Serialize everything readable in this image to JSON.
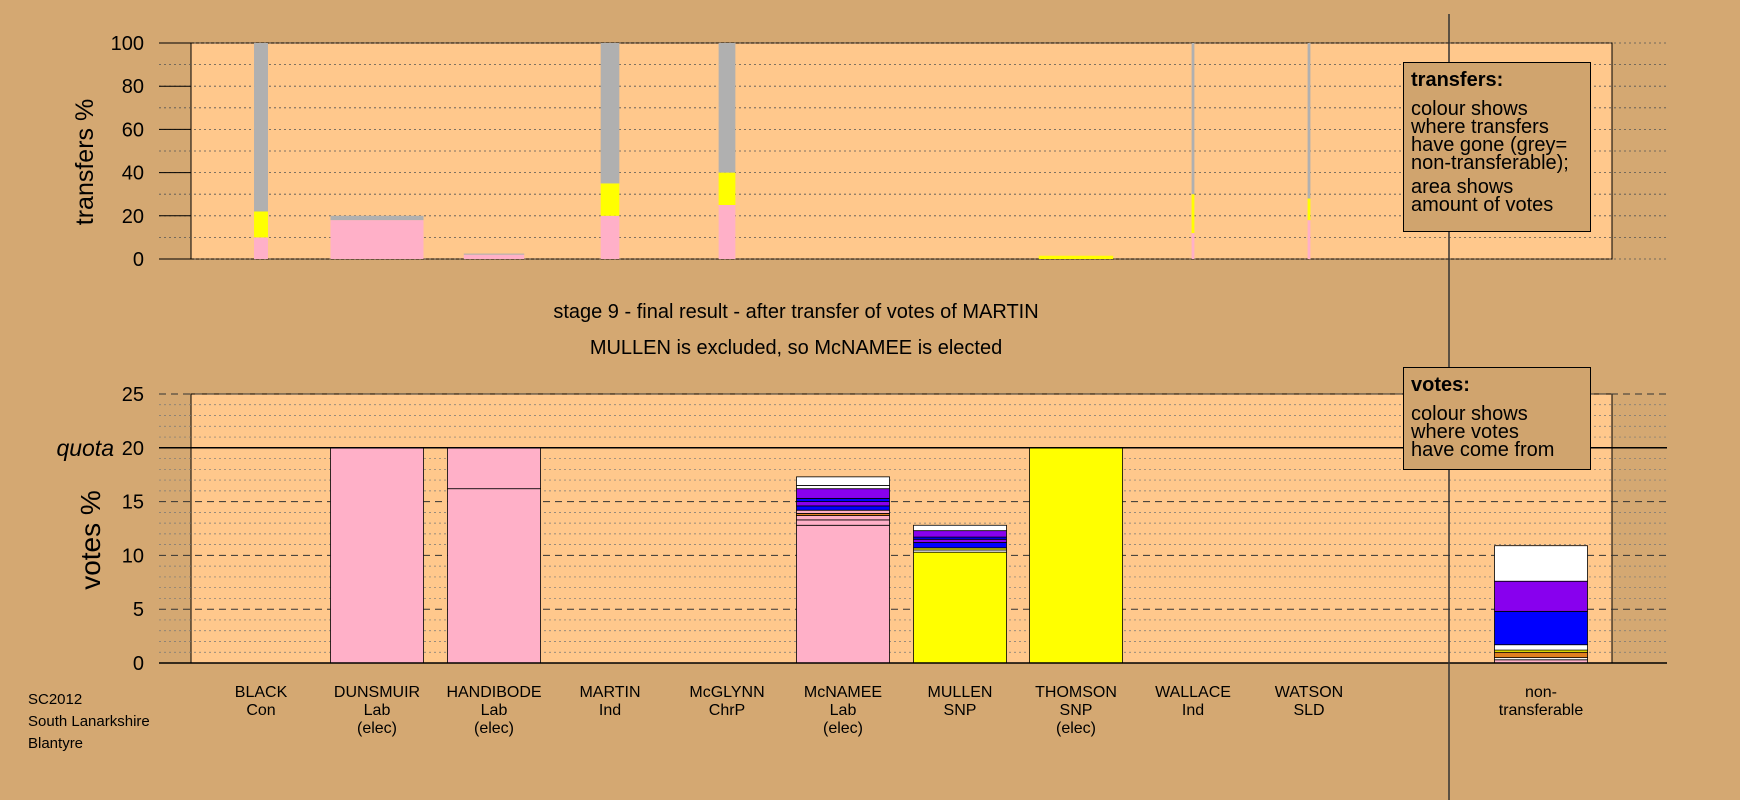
{
  "chart_data": [
    {
      "type": "bar",
      "stacked": true,
      "ylabel": "transfers %",
      "ylim": [
        0,
        100
      ],
      "yticks": [
        0,
        20,
        40,
        60,
        80,
        100
      ],
      "grid": "dotted",
      "categories": [
        "BLACK",
        "DUNSMUIR",
        "HANDIBODE",
        "MARTIN",
        "McGLYNN",
        "McNAMEE",
        "MULLEN",
        "THOMSON",
        "WALLACE",
        "WATSON"
      ],
      "bars": [
        {
          "candidate": "BLACK",
          "segments": [
            {
              "color": "#ffb0c8",
              "value": 10
            },
            {
              "color": "#ffff00",
              "value": 12
            },
            {
              "color": "#b0b0b0",
              "value": 78
            }
          ],
          "width_share": 0.15
        },
        {
          "candidate": "DUNSMUIR",
          "segments": [
            {
              "color": "#ffb0c8",
              "value": 18
            },
            {
              "color": "#b0b0b0",
              "value": 2
            }
          ],
          "width_share": 1.0
        },
        {
          "candidate": "HANDIBODE",
          "segments": [
            {
              "color": "#ffb0c8",
              "value": 2
            },
            {
              "color": "#b0b0b0",
              "value": 0.5
            }
          ],
          "width_share": 0.65
        },
        {
          "candidate": "MARTIN",
          "segments": [
            {
              "color": "#ffb0c8",
              "value": 20
            },
            {
              "color": "#ffff00",
              "value": 15
            },
            {
              "color": "#b0b0b0",
              "value": 65
            }
          ],
          "width_share": 0.2
        },
        {
          "candidate": "McGLYNN",
          "segments": [
            {
              "color": "#ffb0c8",
              "value": 25
            },
            {
              "color": "#ffff00",
              "value": 15
            },
            {
              "color": "#b0b0b0",
              "value": 60
            }
          ],
          "width_share": 0.18
        },
        {
          "candidate": "McNAMEE",
          "segments": [],
          "width_share": 0
        },
        {
          "candidate": "MULLEN",
          "segments": [],
          "width_share": 0
        },
        {
          "candidate": "THOMSON",
          "segments": [
            {
              "color": "#ffff00",
              "value": 1.5
            }
          ],
          "width_share": 0.8
        },
        {
          "candidate": "WALLACE",
          "segments": [
            {
              "color": "#ffb0c8",
              "value": 12
            },
            {
              "color": "#ffff00",
              "value": 18
            },
            {
              "color": "#b0b0b0",
              "value": 70
            }
          ],
          "width_share": 0.03
        },
        {
          "candidate": "WATSON",
          "segments": [
            {
              "color": "#ffb0c8",
              "value": 18
            },
            {
              "color": "#ffff00",
              "value": 10
            },
            {
              "color": "#b0b0b0",
              "value": 72
            }
          ],
          "width_share": 0.03
        }
      ]
    },
    {
      "type": "bar",
      "stacked": true,
      "ylabel": "votes %",
      "ylim": [
        0,
        25
      ],
      "yticks": [
        0,
        5,
        10,
        15,
        20,
        25
      ],
      "quota": 20,
      "quota_label": "quota",
      "grid": "dashed",
      "categories": [
        "BLACK",
        "DUNSMUIR",
        "HANDIBODE",
        "MARTIN",
        "McGLYNN",
        "McNAMEE",
        "MULLEN",
        "THOMSON",
        "WALLACE",
        "WATSON",
        "non-transferable"
      ],
      "bars": [
        {
          "candidate": "BLACK",
          "segments": []
        },
        {
          "candidate": "DUNSMUIR",
          "segments": [
            {
              "color": "#ffb0c8",
              "value": 20
            }
          ]
        },
        {
          "candidate": "HANDIBODE",
          "segments": [
            {
              "color": "#ffb0c8",
              "value": 16.2
            },
            {
              "color": "#ffb0c8",
              "value": 3.8
            }
          ]
        },
        {
          "candidate": "MARTIN",
          "segments": []
        },
        {
          "candidate": "McGLYNN",
          "segments": []
        },
        {
          "candidate": "McNAMEE",
          "segments": [
            {
              "color": "#ffb0c8",
              "value": 12.8
            },
            {
              "color": "#ffb0c8",
              "value": 0.5
            },
            {
              "color": "#ffb0c8",
              "value": 0.4
            },
            {
              "color": "#e08020",
              "value": 0.2
            },
            {
              "color": "#ffb0c8",
              "value": 0.3
            },
            {
              "color": "#0000ff",
              "value": 0.4
            },
            {
              "color": "#8800ee",
              "value": 0.4
            },
            {
              "color": "#0000ff",
              "value": 0.3
            },
            {
              "color": "#8800ee",
              "value": 0.9
            },
            {
              "color": "#ffffff",
              "value": 0.3
            },
            {
              "color": "#ffffff",
              "value": 0.8
            }
          ]
        },
        {
          "candidate": "MULLEN",
          "segments": [
            {
              "color": "#ffff00",
              "value": 10.3
            },
            {
              "color": "#ffffff",
              "value": 0.2
            },
            {
              "color": "#ffff00",
              "value": 0.2
            },
            {
              "color": "#0000ff",
              "value": 0.5
            },
            {
              "color": "#8800ee",
              "value": 0.3
            },
            {
              "color": "#0000ff",
              "value": 0.2
            },
            {
              "color": "#8800ee",
              "value": 0.6
            },
            {
              "color": "#ffffff",
              "value": 0.5
            }
          ]
        },
        {
          "candidate": "THOMSON",
          "segments": [
            {
              "color": "#ffff00",
              "value": 20
            }
          ]
        },
        {
          "candidate": "WALLACE",
          "segments": []
        },
        {
          "candidate": "WATSON",
          "segments": []
        },
        {
          "candidate": "non-transferable",
          "segments": [
            {
              "color": "#ffb0c8",
              "value": 0.3
            },
            {
              "color": "#ffffff",
              "value": 0.2
            },
            {
              "color": "#e08020",
              "value": 0.5
            },
            {
              "color": "#ffff00",
              "value": 0.2
            },
            {
              "color": "#ffffff",
              "value": 0.5
            },
            {
              "color": "#0000ff",
              "value": 3.1
            },
            {
              "color": "#8800ee",
              "value": 2.8
            },
            {
              "color": "#ffffff",
              "value": 3.3
            }
          ]
        }
      ]
    }
  ],
  "candidates": [
    {
      "name": "BLACK",
      "party": "Con",
      "note": ""
    },
    {
      "name": "DUNSMUIR",
      "party": "Lab",
      "note": "(elec)"
    },
    {
      "name": "HANDIBODE",
      "party": "Lab",
      "note": "(elec)"
    },
    {
      "name": "MARTIN",
      "party": "Ind",
      "note": ""
    },
    {
      "name": "McGLYNN",
      "party": "ChrP",
      "note": ""
    },
    {
      "name": "McNAMEE",
      "party": "Lab",
      "note": "(elec)"
    },
    {
      "name": "MULLEN",
      "party": "SNP",
      "note": ""
    },
    {
      "name": "THOMSON",
      "party": "SNP",
      "note": "(elec)"
    },
    {
      "name": "WALLACE",
      "party": "Ind",
      "note": ""
    },
    {
      "name": "WATSON",
      "party": "SLD",
      "note": ""
    }
  ],
  "nontransferable_label": [
    "non-",
    "transferable"
  ],
  "titles": {
    "line1": "stage 9 - final result - after transfer of votes of MARTIN",
    "line2": "MULLEN is excluded, so McNAMEE is elected"
  },
  "legend_transfers": {
    "title": "transfers:",
    "para1": [
      "colour shows",
      "where transfers",
      "have gone (grey=",
      "non-transferable);"
    ],
    "para2": [
      "area shows",
      "amount of votes"
    ]
  },
  "legend_votes": {
    "title": "votes:",
    "para1": [
      "colour shows",
      "where votes",
      "have come from"
    ]
  },
  "footer": [
    "SC2012",
    "South Lanarkshire",
    "Blantyre"
  ],
  "colors": {
    "background": "#d4a872",
    "plot_bg": "#ffc88c",
    "grey": "#b0b0b0",
    "lab": "#ffb0c8",
    "snp": "#ffff00",
    "purple": "#8800ee",
    "blue": "#0000ff",
    "orange": "#e08020"
  }
}
